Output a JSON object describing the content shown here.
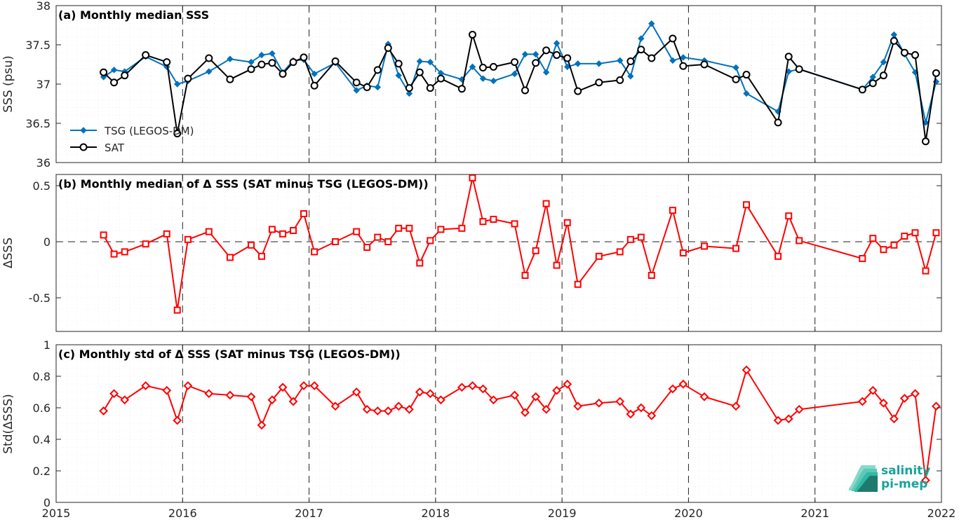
{
  "chart_data": [
    {
      "type": "line",
      "panel": "a",
      "title": "(a) Monthly median SSS",
      "ylabel": "SSS (psu)",
      "xlim": [
        2015,
        2022
      ],
      "ylim": [
        36,
        38
      ],
      "yticks": [
        36,
        36.5,
        37,
        37.5,
        38
      ],
      "ytick_labels": [
        "36",
        "36.5",
        "37",
        "37.5",
        "38"
      ],
      "grid": true,
      "legend_position": "lower-left",
      "series": [
        {
          "name": "TSG (LEGOS-DM)",
          "color": "#0072BD",
          "marker": "diamond-filled",
          "x": [
            2015.375,
            2015.458,
            2015.542,
            2015.708,
            2015.875,
            2015.958,
            2016.042,
            2016.208,
            2016.375,
            2016.542,
            2016.625,
            2016.708,
            2016.792,
            2016.875,
            2016.958,
            2017.042,
            2017.208,
            2017.375,
            2017.458,
            2017.542,
            2017.625,
            2017.708,
            2017.792,
            2017.875,
            2017.958,
            2018.042,
            2018.208,
            2018.292,
            2018.375,
            2018.458,
            2018.625,
            2018.708,
            2018.792,
            2018.875,
            2018.958,
            2019.042,
            2019.125,
            2019.292,
            2019.458,
            2019.542,
            2019.625,
            2019.708,
            2019.875,
            2019.958,
            2020.125,
            2020.375,
            2020.458,
            2020.708,
            2020.792,
            2020.875,
            2021.375,
            2021.458,
            2021.542,
            2021.625,
            2021.708,
            2021.792,
            2021.875,
            2021.958
          ],
          "y": [
            37.09,
            37.18,
            37.16,
            37.35,
            37.22,
            37.0,
            37.04,
            37.16,
            37.32,
            37.28,
            37.37,
            37.39,
            37.15,
            37.3,
            37.31,
            37.13,
            37.27,
            36.92,
            36.98,
            36.96,
            37.51,
            37.11,
            36.88,
            37.29,
            37.28,
            37.14,
            37.06,
            37.22,
            37.07,
            37.04,
            37.13,
            37.38,
            37.38,
            37.15,
            37.52,
            37.22,
            37.26,
            37.26,
            37.3,
            37.1,
            37.58,
            37.77,
            37.3,
            37.34,
            37.3,
            37.21,
            36.88,
            36.65,
            37.16,
            37.19,
            36.93,
            37.09,
            37.28,
            37.63,
            37.38,
            37.15,
            36.51,
            37.03
          ]
        },
        {
          "name": "SAT",
          "color": "#000000",
          "marker": "circle-open",
          "x": [
            2015.375,
            2015.458,
            2015.542,
            2015.708,
            2015.875,
            2015.958,
            2016.042,
            2016.208,
            2016.375,
            2016.542,
            2016.625,
            2016.708,
            2016.792,
            2016.875,
            2016.958,
            2017.042,
            2017.208,
            2017.375,
            2017.458,
            2017.542,
            2017.625,
            2017.708,
            2017.792,
            2017.875,
            2017.958,
            2018.042,
            2018.208,
            2018.292,
            2018.375,
            2018.458,
            2018.625,
            2018.708,
            2018.792,
            2018.875,
            2018.958,
            2019.042,
            2019.125,
            2019.292,
            2019.458,
            2019.542,
            2019.625,
            2019.708,
            2019.875,
            2019.958,
            2020.125,
            2020.375,
            2020.458,
            2020.708,
            2020.792,
            2020.875,
            2021.375,
            2021.458,
            2021.542,
            2021.625,
            2021.708,
            2021.792,
            2021.875,
            2021.958
          ],
          "y": [
            37.15,
            37.02,
            37.11,
            37.37,
            37.28,
            36.37,
            37.07,
            37.33,
            37.06,
            37.19,
            37.25,
            37.27,
            37.13,
            37.28,
            37.34,
            36.98,
            37.29,
            37.02,
            36.96,
            37.18,
            37.46,
            37.26,
            36.95,
            37.15,
            36.95,
            37.07,
            36.94,
            37.63,
            37.21,
            37.22,
            37.28,
            36.92,
            37.27,
            37.43,
            37.37,
            37.33,
            36.91,
            37.02,
            37.05,
            37.29,
            37.44,
            37.33,
            37.58,
            37.23,
            37.25,
            37.06,
            37.12,
            36.51,
            37.35,
            37.19,
            36.93,
            37.01,
            37.11,
            37.55,
            37.4,
            37.37,
            36.27,
            37.14
          ]
        }
      ]
    },
    {
      "type": "line",
      "panel": "b",
      "title": "(b) Monthly median of Δ SSS (SAT minus TSG (LEGOS-DM))",
      "ylabel": "ΔSSS",
      "xlim": [
        2015,
        2022
      ],
      "ylim": [
        -0.8,
        0.6
      ],
      "yticks": [
        -0.5,
        0,
        0.5
      ],
      "ytick_labels": [
        "-0.5",
        "0",
        "0.5"
      ],
      "grid": true,
      "series": [
        {
          "name": "",
          "color": "#FF0000",
          "marker": "square-open",
          "x": [
            2015.375,
            2015.458,
            2015.542,
            2015.708,
            2015.875,
            2015.958,
            2016.042,
            2016.208,
            2016.375,
            2016.542,
            2016.625,
            2016.708,
            2016.792,
            2016.875,
            2016.958,
            2017.042,
            2017.208,
            2017.375,
            2017.458,
            2017.542,
            2017.625,
            2017.708,
            2017.792,
            2017.875,
            2017.958,
            2018.042,
            2018.208,
            2018.292,
            2018.375,
            2018.458,
            2018.625,
            2018.708,
            2018.792,
            2018.875,
            2018.958,
            2019.042,
            2019.125,
            2019.292,
            2019.458,
            2019.542,
            2019.625,
            2019.708,
            2019.875,
            2019.958,
            2020.125,
            2020.375,
            2020.458,
            2020.708,
            2020.792,
            2020.875,
            2021.375,
            2021.458,
            2021.542,
            2021.625,
            2021.708,
            2021.792,
            2021.875,
            2021.958
          ],
          "y": [
            0.06,
            -0.11,
            -0.09,
            -0.02,
            0.07,
            -0.61,
            0.02,
            0.09,
            -0.14,
            -0.03,
            -0.13,
            0.11,
            0.07,
            0.1,
            0.25,
            -0.09,
            0.0,
            0.09,
            -0.05,
            0.04,
            0.0,
            0.12,
            0.12,
            -0.19,
            0.01,
            0.11,
            0.12,
            0.57,
            0.18,
            0.2,
            0.16,
            -0.3,
            -0.08,
            0.34,
            -0.21,
            0.17,
            -0.38,
            -0.13,
            -0.09,
            0.02,
            0.04,
            -0.3,
            0.28,
            -0.1,
            -0.04,
            -0.06,
            0.33,
            -0.13,
            0.23,
            0.01,
            -0.15,
            0.03,
            -0.07,
            -0.03,
            0.05,
            0.08,
            -0.26,
            0.08
          ]
        }
      ]
    },
    {
      "type": "line",
      "panel": "c",
      "title": "(c) Monthly std of Δ SSS (SAT minus TSG (LEGOS-DM))",
      "ylabel": "Std(ΔSSS)",
      "xlim": [
        2015,
        2022
      ],
      "ylim": [
        0,
        1
      ],
      "yticks": [
        0,
        0.2,
        0.4,
        0.6,
        0.8,
        1
      ],
      "ytick_labels": [
        "0",
        "0.2",
        "0.4",
        "0.6",
        "0.8",
        "1"
      ],
      "xticks": [
        2015,
        2016,
        2017,
        2018,
        2019,
        2020,
        2021,
        2022
      ],
      "xtick_labels": [
        "2015",
        "2016",
        "2017",
        "2018",
        "2019",
        "2020",
        "2021",
        "2022"
      ],
      "grid": true,
      "series": [
        {
          "name": "",
          "color": "#FF0000",
          "marker": "diamond-open",
          "x": [
            2015.375,
            2015.458,
            2015.542,
            2015.708,
            2015.875,
            2015.958,
            2016.042,
            2016.208,
            2016.375,
            2016.542,
            2016.625,
            2016.708,
            2016.792,
            2016.875,
            2016.958,
            2017.042,
            2017.208,
            2017.375,
            2017.458,
            2017.542,
            2017.625,
            2017.708,
            2017.792,
            2017.875,
            2017.958,
            2018.042,
            2018.208,
            2018.292,
            2018.375,
            2018.458,
            2018.625,
            2018.708,
            2018.792,
            2018.875,
            2018.958,
            2019.042,
            2019.125,
            2019.292,
            2019.458,
            2019.542,
            2019.625,
            2019.708,
            2019.875,
            2019.958,
            2020.125,
            2020.375,
            2020.458,
            2020.708,
            2020.792,
            2020.875,
            2021.375,
            2021.458,
            2021.542,
            2021.625,
            2021.708,
            2021.792,
            2021.875,
            2021.958
          ],
          "y": [
            0.58,
            0.69,
            0.65,
            0.74,
            0.71,
            0.52,
            0.74,
            0.69,
            0.68,
            0.67,
            0.49,
            0.65,
            0.73,
            0.64,
            0.74,
            0.74,
            0.61,
            0.7,
            0.59,
            0.58,
            0.58,
            0.61,
            0.59,
            0.7,
            0.69,
            0.65,
            0.73,
            0.74,
            0.72,
            0.65,
            0.68,
            0.57,
            0.67,
            0.59,
            0.71,
            0.75,
            0.61,
            0.63,
            0.64,
            0.56,
            0.6,
            0.55,
            0.72,
            0.75,
            0.67,
            0.61,
            0.84,
            0.52,
            0.53,
            0.59,
            0.64,
            0.71,
            0.63,
            0.53,
            0.66,
            0.69,
            0.14,
            0.61
          ]
        }
      ]
    }
  ],
  "logo": {
    "line1": "salinity",
    "line2": "pi-mep",
    "colors": [
      "#2fb9a8",
      "#2a9d8f",
      "#5cc9b5",
      "#1f7a6e",
      "#87d9c8"
    ]
  }
}
